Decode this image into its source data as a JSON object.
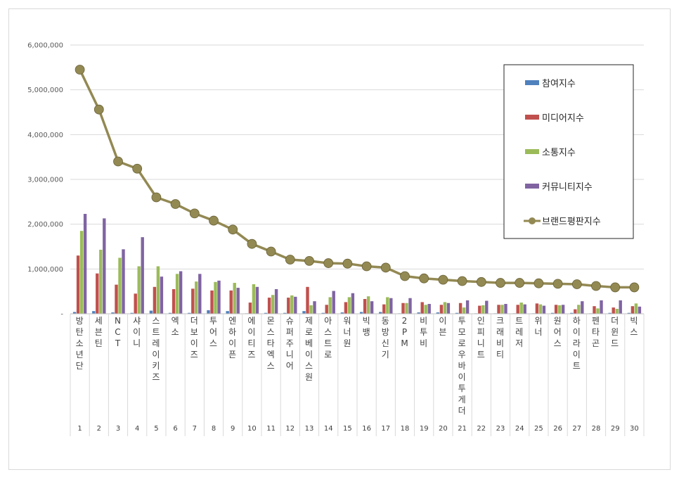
{
  "chart_data": {
    "type": "bar",
    "title": "",
    "xlabel": "",
    "ylabel": "",
    "ylim": [
      0,
      6000000
    ],
    "y_ticks": [
      "-",
      "1,000,000",
      "2,000,000",
      "3,000,000",
      "4,000,000",
      "5,000,000",
      "6,000,000"
    ],
    "grid": true,
    "legend_position": "top-right",
    "ranks": [
      "1",
      "2",
      "3",
      "4",
      "5",
      "6",
      "7",
      "8",
      "9",
      "10",
      "11",
      "12",
      "13",
      "14",
      "15",
      "16",
      "17",
      "18",
      "19",
      "20",
      "21",
      "22",
      "23",
      "24",
      "25",
      "26",
      "27",
      "28",
      "29",
      "30"
    ],
    "categories": [
      "방탄소년단",
      "세븐틴",
      "NCT",
      "샤이니",
      "스트레이키즈",
      "엑소",
      "더보이즈",
      "투어스",
      "엔하이픈",
      "에이티즈",
      "몬스타엑스",
      "슈퍼주니어",
      "제로베이스원",
      "아스트로",
      "워너원",
      "빅뱅",
      "동방신기",
      "2PM",
      "비투비",
      "이븐",
      "투모로우바이투게더",
      "인피니트",
      "크래비티",
      "트레저",
      "위너",
      "원어스",
      "하이라이트",
      "펜타곤",
      "더윈드",
      "빅스"
    ],
    "series": [
      {
        "name": "참여지수",
        "kind": "bar",
        "color": "#4f81bd",
        "values": [
          40000,
          60000,
          30000,
          20000,
          70000,
          20000,
          20000,
          80000,
          60000,
          10000,
          20000,
          20000,
          60000,
          20000,
          30000,
          40000,
          40000,
          10000,
          30000,
          30000,
          20000,
          10000,
          10000,
          10000,
          10000,
          20000,
          20000,
          10000,
          20000,
          20000
        ]
      },
      {
        "name": "미디어지수",
        "kind": "bar",
        "color": "#c0504d",
        "values": [
          1300000,
          900000,
          650000,
          450000,
          600000,
          550000,
          560000,
          520000,
          520000,
          250000,
          360000,
          360000,
          600000,
          200000,
          260000,
          330000,
          210000,
          240000,
          260000,
          200000,
          240000,
          180000,
          200000,
          200000,
          230000,
          200000,
          100000,
          170000,
          140000,
          170000
        ]
      },
      {
        "name": "소통지수",
        "kind": "bar",
        "color": "#9bbb59",
        "values": [
          1850000,
          1430000,
          1250000,
          1060000,
          1060000,
          890000,
          720000,
          710000,
          690000,
          660000,
          420000,
          410000,
          190000,
          370000,
          370000,
          390000,
          370000,
          240000,
          200000,
          260000,
          140000,
          190000,
          200000,
          250000,
          210000,
          190000,
          200000,
          120000,
          110000,
          230000
        ]
      },
      {
        "name": "커뮤니티지수",
        "kind": "bar",
        "color": "#8064a2",
        "values": [
          2230000,
          2130000,
          1440000,
          1710000,
          830000,
          950000,
          890000,
          740000,
          580000,
          600000,
          550000,
          380000,
          280000,
          510000,
          460000,
          280000,
          350000,
          350000,
          220000,
          240000,
          300000,
          290000,
          220000,
          210000,
          180000,
          200000,
          280000,
          300000,
          300000,
          160000
        ]
      },
      {
        "name": "브랜드평판지수",
        "kind": "line",
        "color": "#938953",
        "values": [
          5450000,
          4560000,
          3400000,
          3240000,
          2600000,
          2450000,
          2240000,
          2080000,
          1880000,
          1560000,
          1390000,
          1210000,
          1180000,
          1130000,
          1120000,
          1060000,
          1030000,
          840000,
          790000,
          760000,
          730000,
          710000,
          690000,
          690000,
          680000,
          670000,
          660000,
          620000,
          590000,
          590000
        ]
      }
    ]
  }
}
